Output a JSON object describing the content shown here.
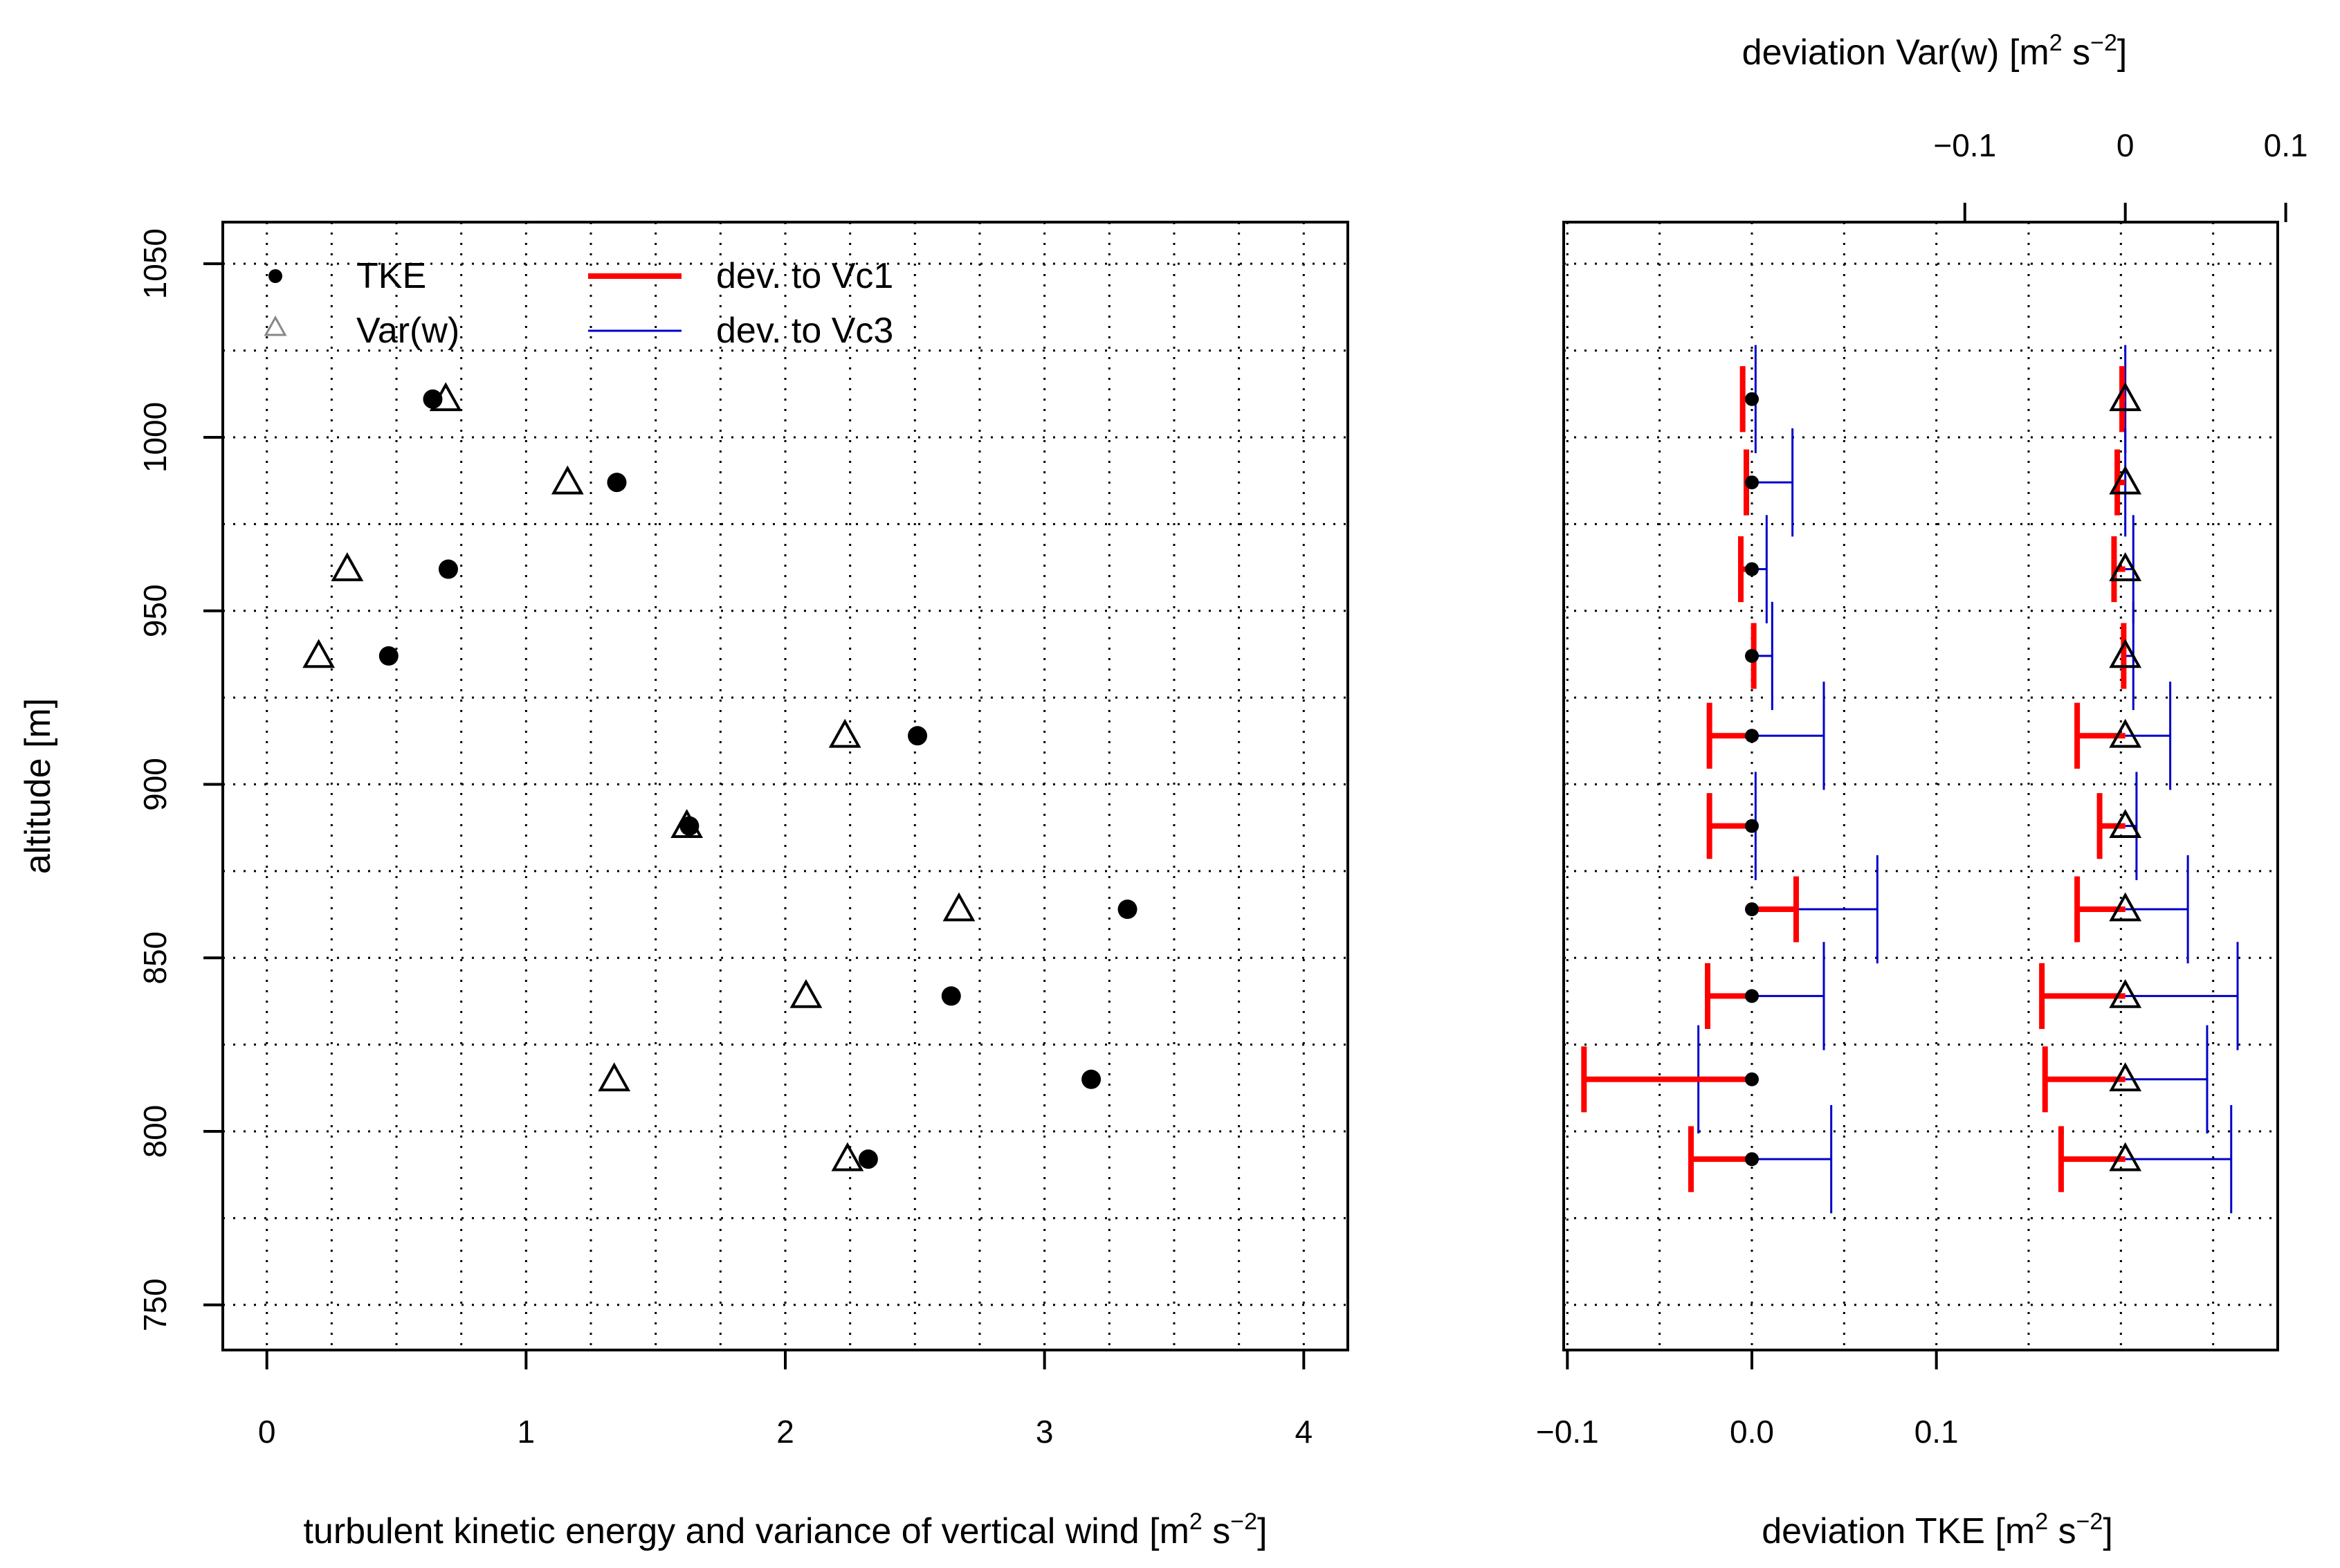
{
  "chart_data": [
    {
      "type": "scatter",
      "xlabel": "turbulent kinetic energy and variance of vertical wind",
      "xlabel_unit": {
        "open": "[m",
        "sup1": "2",
        "mid": " s",
        "sup2": "−2",
        "close": "]"
      },
      "ylabel": "altitude [m]",
      "xlim": [
        -0.17,
        4.17
      ],
      "ylim": [
        737,
        1062
      ],
      "x_ticks": [
        0,
        1,
        2,
        3,
        4
      ],
      "y_ticks": [
        750,
        800,
        850,
        900,
        950,
        1000,
        1050
      ],
      "grid": true,
      "legend": {
        "placement": "top-left",
        "entries": [
          {
            "label": "TKE",
            "symbol": "small-filled-circle"
          },
          {
            "label": "Var(w)",
            "symbol": "small-open-triangle"
          },
          {
            "label": "dev. to Vc1",
            "symbol": "thick-line",
            "color": "#ff0000"
          },
          {
            "label": "dev. to Vc3",
            "symbol": "thin-line",
            "color": "#0000cc"
          }
        ]
      },
      "series": [
        {
          "name": "TKE",
          "marker": "filled-circle",
          "points": [
            {
              "x": 0.64,
              "y": 1011
            },
            {
              "x": 1.35,
              "y": 987
            },
            {
              "x": 0.7,
              "y": 962
            },
            {
              "x": 0.47,
              "y": 937
            },
            {
              "x": 2.51,
              "y": 914
            },
            {
              "x": 1.63,
              "y": 888
            },
            {
              "x": 3.32,
              "y": 864
            },
            {
              "x": 2.64,
              "y": 839
            },
            {
              "x": 3.18,
              "y": 815
            },
            {
              "x": 2.32,
              "y": 792
            }
          ]
        },
        {
          "name": "Var(w)",
          "marker": "open-triangle",
          "points": [
            {
              "x": 0.69,
              "y": 1011
            },
            {
              "x": 1.16,
              "y": 987
            },
            {
              "x": 0.31,
              "y": 962
            },
            {
              "x": 0.2,
              "y": 937
            },
            {
              "x": 2.23,
              "y": 914
            },
            {
              "x": 1.62,
              "y": 888
            },
            {
              "x": 2.67,
              "y": 864
            },
            {
              "x": 2.08,
              "y": 839
            },
            {
              "x": 1.34,
              "y": 815
            },
            {
              "x": 2.24,
              "y": 792
            }
          ]
        }
      ]
    },
    {
      "type": "errorbar",
      "xlabel_bottom": "deviation TKE",
      "xlabel_bottom_unit": {
        "open": "[m",
        "sup1": "2",
        "mid": " s",
        "sup2": "−2",
        "close": "]"
      },
      "xlabel_top": "deviation Var(w)",
      "xlabel_top_unit": {
        "open": "[m",
        "sup1": "2",
        "mid": " s",
        "sup2": "−2",
        "close": "]"
      },
      "xlim_bottom": [
        -0.102,
        0.285
      ],
      "xlim_top": [
        -0.35,
        0.095
      ],
      "x_ticks_bottom": [
        -0.1,
        0.0,
        0.1
      ],
      "x_tick_labels_bottom": [
        "−0.1",
        "0.0",
        "0.1"
      ],
      "x_ticks_top": [
        -0.1,
        0,
        0.1
      ],
      "x_tick_labels_top": [
        "−0.1",
        "0",
        "0.1"
      ],
      "ylim": [
        737,
        1062
      ],
      "grid": true,
      "tke_deviation": [
        {
          "y": 1011,
          "vc1": -0.005,
          "vc3": 0.002
        },
        {
          "y": 987,
          "vc1": -0.003,
          "vc3": 0.022
        },
        {
          "y": 962,
          "vc1": -0.006,
          "vc3": 0.008
        },
        {
          "y": 937,
          "vc1": 0.001,
          "vc3": 0.011
        },
        {
          "y": 914,
          "vc1": -0.023,
          "vc3": 0.039
        },
        {
          "y": 888,
          "vc1": -0.023,
          "vc3": 0.002
        },
        {
          "y": 864,
          "vc1": 0.024,
          "vc3": 0.068
        },
        {
          "y": 839,
          "vc1": -0.024,
          "vc3": 0.039
        },
        {
          "y": 815,
          "vc1": -0.091,
          "vc3": -0.029
        },
        {
          "y": 792,
          "vc1": -0.033,
          "vc3": 0.043
        }
      ],
      "var_deviation": [
        {
          "y": 1011,
          "vc1": -0.002,
          "vc3": 0.0
        },
        {
          "y": 987,
          "vc1": -0.005,
          "vc3": 0.0
        },
        {
          "y": 962,
          "vc1": -0.007,
          "vc3": 0.005
        },
        {
          "y": 937,
          "vc1": -0.001,
          "vc3": 0.005
        },
        {
          "y": 914,
          "vc1": -0.03,
          "vc3": 0.028
        },
        {
          "y": 888,
          "vc1": -0.016,
          "vc3": 0.007
        },
        {
          "y": 864,
          "vc1": -0.03,
          "vc3": 0.039
        },
        {
          "y": 839,
          "vc1": -0.052,
          "vc3": 0.07
        },
        {
          "y": 815,
          "vc1": -0.05,
          "vc3": 0.051
        },
        {
          "y": 792,
          "vc1": -0.04,
          "vc3": 0.066
        }
      ],
      "colors": {
        "vc1": "#ff0000",
        "vc3": "#0000cc"
      }
    }
  ]
}
